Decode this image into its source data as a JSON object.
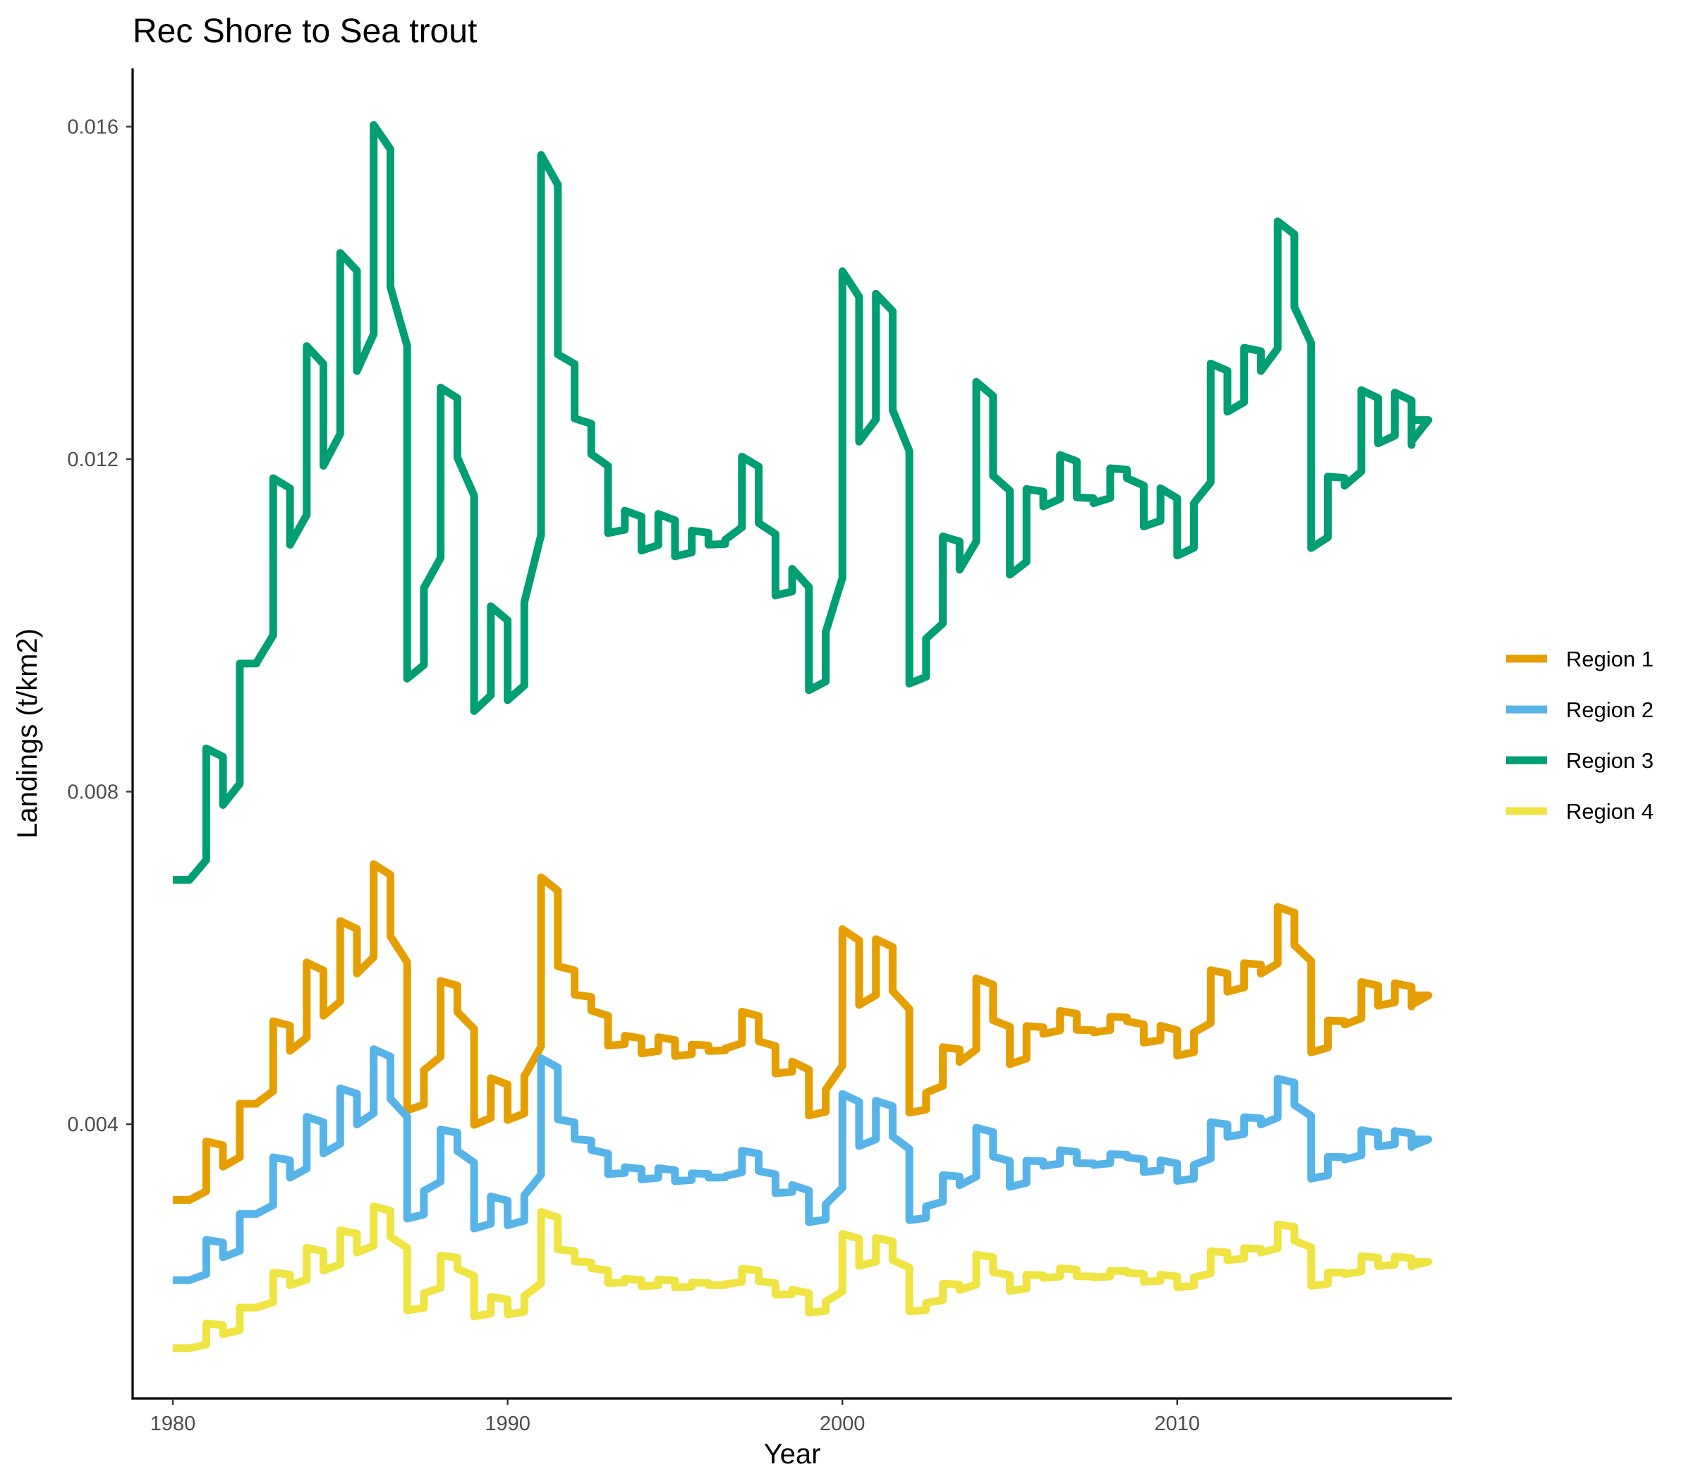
{
  "chart_data": {
    "type": "line",
    "title": "Rec Shore to Sea trout",
    "xlabel": "Year",
    "ylabel": "Landings (t/km2)",
    "xlim": [
      1978.8,
      2018.2
    ],
    "ylim": [
      0.0007,
      0.0167
    ],
    "x_ticks": [
      1980,
      1990,
      2000,
      2010
    ],
    "x_tick_labels": [
      "1980",
      "1990",
      "2000",
      "2010"
    ],
    "y_ticks": [
      0.004,
      0.008,
      0.012,
      0.016
    ],
    "y_tick_labels": [
      "0.004",
      "0.008",
      "0.012",
      "0.016"
    ],
    "grid": false,
    "legend": {
      "position": "right"
    },
    "base_series": [
      0.00694,
      0.00694,
      0.00852,
      0.00784,
      0.00954,
      0.00955,
      0.01177,
      0.01097,
      0.01336,
      0.01192,
      0.01448,
      0.01306,
      0.01602,
      0.01407,
      0.00936,
      0.01045,
      0.01286,
      0.01202,
      0.00897,
      0.01023,
      0.0091,
      0.01028,
      0.01566,
      0.01326,
      0.01249,
      0.01206,
      0.01111,
      0.01138,
      0.0109,
      0.01134,
      0.01083,
      0.01114,
      0.01097,
      0.01103,
      0.01203,
      0.01123,
      0.01036,
      0.01068,
      0.00922,
      0.00992,
      0.01426,
      0.01221,
      0.01399,
      0.01259,
      0.0093,
      0.00984,
      0.01107,
      0.01067,
      0.01293,
      0.0118,
      0.01061,
      0.01164,
      0.01143,
      0.01205,
      0.01154,
      0.01147,
      0.01189,
      0.01177,
      0.01119,
      0.01165,
      0.01084,
      0.01147,
      0.01315,
      0.01257,
      0.01334,
      0.01306,
      0.01486,
      0.01383,
      0.01093,
      0.01179,
      0.01168,
      0.01283,
      0.01219,
      0.0128,
      0.01217,
      0.01247
    ],
    "series": [
      {
        "name": "Region 1",
        "color": "#E69F00",
        "scale": 0.445
      },
      {
        "name": "Region 2",
        "color": "#56B4E9",
        "scale": 0.306
      },
      {
        "name": "Region 3",
        "color": "#009E73",
        "scale": 1.0
      },
      {
        "name": "Region 4",
        "color": "#F0E442",
        "scale": 0.188
      }
    ]
  }
}
